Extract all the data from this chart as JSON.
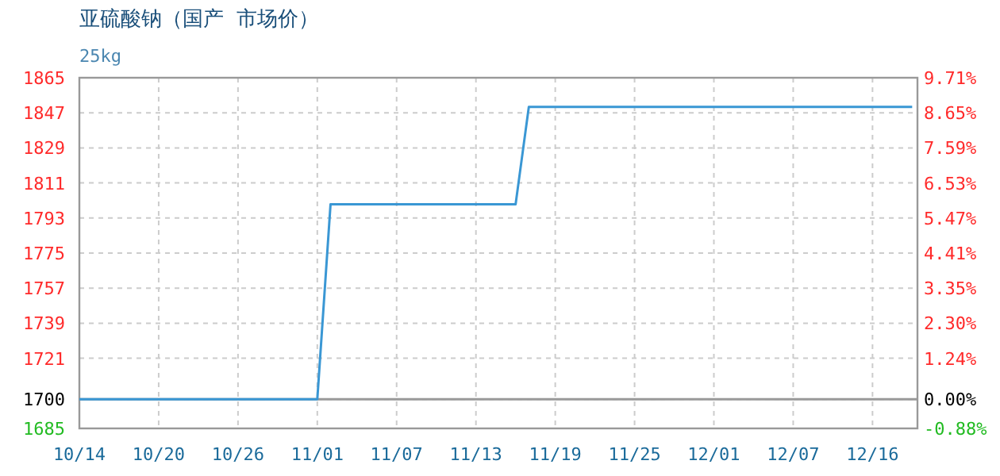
{
  "chart_data": {
    "type": "line",
    "title": "亚硫酸钠（国产 市场价）",
    "subtitle": "25kg",
    "categories": [
      "10/14",
      null,
      null,
      null,
      null,
      null,
      "10/20",
      null,
      null,
      null,
      null,
      null,
      "10/26",
      null,
      null,
      null,
      null,
      null,
      "11/01",
      null,
      null,
      null,
      null,
      null,
      "11/07",
      null,
      null,
      null,
      null,
      null,
      "11/13",
      null,
      null,
      null,
      null,
      null,
      "11/19",
      null,
      null,
      null,
      null,
      null,
      "11/25",
      null,
      null,
      null,
      null,
      null,
      "12/01",
      null,
      null,
      null,
      null,
      null,
      "12/07",
      null,
      null,
      null,
      null,
      null,
      "12/16",
      null,
      null,
      null
    ],
    "series": [
      {
        "color": "#3a97d4",
        "values": [
          1700,
          1700,
          1700,
          1700,
          1700,
          1700,
          1700,
          1700,
          1700,
          1700,
          1700,
          1700,
          1700,
          1700,
          1700,
          1700,
          1700,
          1700,
          1700,
          1800,
          1800,
          1800,
          1800,
          1800,
          1800,
          1800,
          1800,
          1800,
          1800,
          1800,
          1800,
          1800,
          1800,
          1800,
          1850,
          1850,
          1850,
          1850,
          1850,
          1850,
          1850,
          1850,
          1850,
          1850,
          1850,
          1850,
          1850,
          1850,
          1850,
          1850,
          1850,
          1850,
          1850,
          1850,
          1850,
          1850,
          1850,
          1850,
          1850,
          1850,
          1850,
          1850,
          1850,
          1850
        ]
      }
    ],
    "ylim": [
      1685,
      1865
    ],
    "yticks": [
      1685,
      1700,
      1721,
      1739,
      1757,
      1775,
      1793,
      1811,
      1829,
      1847,
      1865
    ],
    "y2lim": [
      -0.88,
      9.71
    ],
    "y2ticks": [
      {
        "value": -0.88,
        "label": "-0.88%"
      },
      {
        "value": 0,
        "label": "0.00%"
      },
      {
        "value": 1.24,
        "label": "1.24%"
      },
      {
        "value": 2.3,
        "label": "2.30%"
      },
      {
        "value": 3.35,
        "label": "3.35%"
      },
      {
        "value": 4.41,
        "label": "4.41%"
      },
      {
        "value": 5.47,
        "label": "5.47%"
      },
      {
        "value": 6.53,
        "label": "6.53%"
      },
      {
        "value": 7.59,
        "label": "7.59%"
      },
      {
        "value": 8.65,
        "label": "8.65%"
      },
      {
        "value": 9.71,
        "label": "9.71%"
      }
    ],
    "ref_lines": [
      {
        "axis": "y",
        "value": 1700,
        "color": "#999999",
        "line_style": "solid"
      }
    ],
    "grid": true,
    "marker": "none",
    "line_style": "solid"
  }
}
